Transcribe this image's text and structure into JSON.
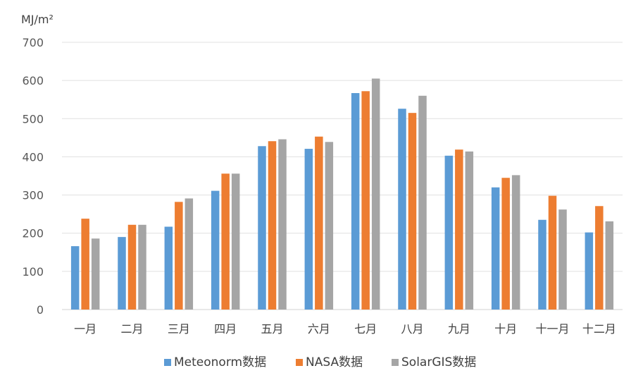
{
  "chart_data": {
    "type": "bar",
    "y_unit_label": "MJ/m²",
    "ylim": [
      0,
      700
    ],
    "yticks": [
      0,
      100,
      200,
      300,
      400,
      500,
      600,
      700
    ],
    "grid": true,
    "legend_position": "bottom",
    "categories": [
      "一月",
      "二月",
      "三月",
      "四月",
      "五月",
      "六月",
      "七月",
      "八月",
      "九月",
      "十月",
      "十一月",
      "十二月"
    ],
    "series": [
      {
        "name": "Meteonorm数据",
        "color": "#5b9bd5",
        "values": [
          166,
          190,
          217,
          311,
          428,
          421,
          567,
          526,
          403,
          320,
          235,
          202
        ]
      },
      {
        "name": "NASA数据",
        "color": "#ed7d31",
        "values": [
          238,
          222,
          282,
          356,
          441,
          453,
          572,
          515,
          419,
          345,
          298,
          271
        ]
      },
      {
        "name": "SolarGIS数据",
        "color": "#a5a5a5",
        "values": [
          186,
          222,
          291,
          356,
          446,
          439,
          605,
          560,
          414,
          352,
          262,
          231
        ]
      }
    ]
  }
}
